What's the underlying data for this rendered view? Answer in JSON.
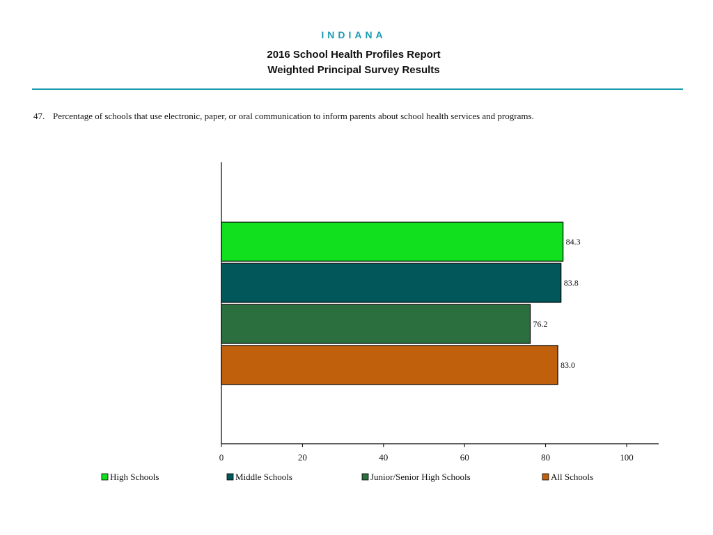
{
  "header": {
    "state": "INDIANA",
    "title": "2016 School Health Profiles Report",
    "subtitle": "Weighted Principal Survey Results"
  },
  "question": {
    "number": "47.",
    "text": "Percentage of schools that use electronic, paper, or oral communication to inform parents about school health services and programs."
  },
  "chart_data": {
    "type": "bar",
    "orientation": "horizontal",
    "xlim": [
      0,
      100
    ],
    "xticks": [
      0,
      20,
      40,
      60,
      80,
      100
    ],
    "legend_position": "bottom",
    "grid": false,
    "series": [
      {
        "name": "High Schools",
        "value": 84.3,
        "label": "84.3",
        "color": "#11e01e"
      },
      {
        "name": "Middle Schools",
        "value": 83.8,
        "label": "83.8",
        "color": "#02575a"
      },
      {
        "name": "Junior/Senior High Schools",
        "value": 76.2,
        "label": "76.2",
        "color": "#2b6f3e"
      },
      {
        "name": "All Schools",
        "value": 83.0,
        "label": "83.0",
        "color": "#c0600d"
      }
    ]
  }
}
